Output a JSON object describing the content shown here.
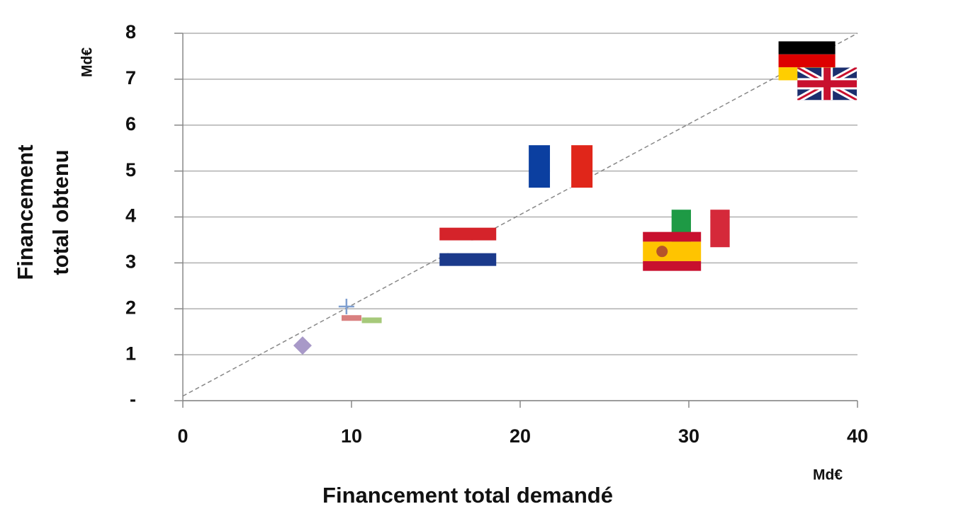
{
  "chart_data": {
    "type": "scatter",
    "xlabel": "Financement total demandé",
    "ylabel": [
      "Financement",
      "total obtenu"
    ],
    "x_unit": "Md€",
    "y_unit": "Md€",
    "xlim": [
      0,
      40
    ],
    "ylim": [
      0,
      8
    ],
    "xticks": [
      0,
      10,
      20,
      30,
      40
    ],
    "yticks": [
      {
        "value": 0,
        "label": "-"
      },
      1,
      2,
      3,
      4,
      5,
      6,
      7,
      8
    ],
    "grid": true,
    "reference_line": {
      "color": "#888888",
      "x": [
        0,
        40
      ],
      "y": [
        0.1,
        8
      ]
    },
    "series": [
      {
        "marker": "flag-de",
        "x": [
          37
        ],
        "y": [
          7.4
        ]
      },
      {
        "marker": "flag-gb",
        "x": [
          38.2
        ],
        "y": [
          6.9
        ]
      },
      {
        "marker": "flag-fr",
        "x": [
          22.4
        ],
        "y": [
          5.1
        ]
      },
      {
        "marker": "flag-nl",
        "x": [
          16.9
        ],
        "y": [
          3.35
        ]
      },
      {
        "marker": "flag-it",
        "x": [
          30.7
        ],
        "y": [
          3.75
        ]
      },
      {
        "marker": "flag-es",
        "x": [
          29
        ],
        "y": [
          3.25
        ]
      },
      {
        "marker": "plus",
        "color": "#7f9fd0",
        "x": [
          9.7
        ],
        "y": [
          2.05
        ]
      },
      {
        "marker": "dash",
        "color": "#d98080",
        "x": [
          10
        ],
        "y": [
          1.8
        ]
      },
      {
        "marker": "dash",
        "color": "#a6c97a",
        "x": [
          11.2
        ],
        "y": [
          1.75
        ]
      },
      {
        "marker": "diamond",
        "color": "#a899c8",
        "x": [
          7.1
        ],
        "y": [
          1.2
        ]
      }
    ]
  }
}
